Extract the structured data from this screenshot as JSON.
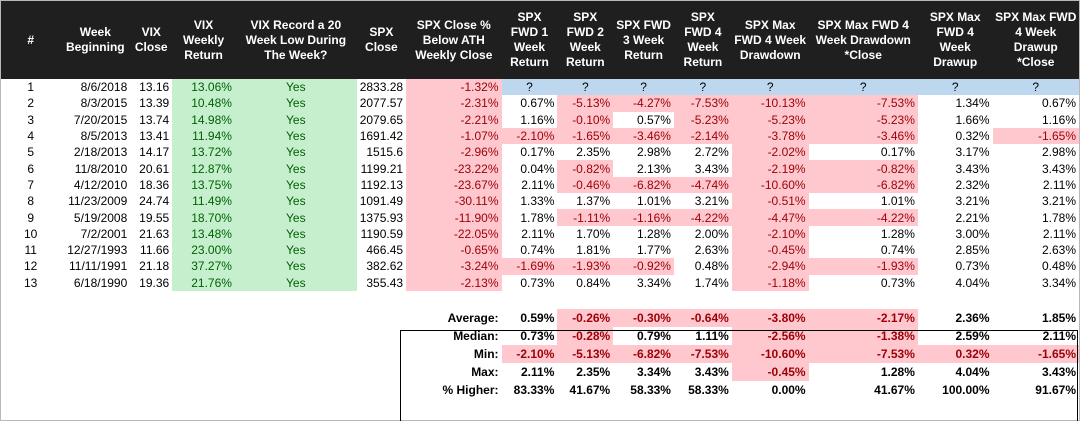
{
  "headers": [
    "#",
    "Week Beginning",
    "VIX Close",
    "VIX Weekly Return",
    "VIX Record a 20 Week Low During The Week?",
    "SPX Close",
    "SPX Close % Below ATH Weekly Close",
    "SPX FWD 1 Week Return",
    "SPX FWD 2 Week Return",
    "SPX FWD 3 Week Return",
    "SPX FWD 4 Week Return",
    "SPX Max FWD 4 Week Drawdown",
    "SPX Max FWD 4 Week Drawdown *Close",
    "SPX Max FWD 4 Week Drawup",
    "SPX Max FWD 4 Week Drawup *Close"
  ],
  "rows": [
    [
      "1",
      "8/6/2018",
      "13.16",
      "13.06%",
      "Yes",
      "2833.28",
      "-1.32%",
      "?",
      "?",
      "?",
      "?",
      "?",
      "?",
      "?",
      "?"
    ],
    [
      "2",
      "8/3/2015",
      "13.39",
      "10.48%",
      "Yes",
      "2077.57",
      "-2.31%",
      "0.67%",
      "-5.13%",
      "-4.27%",
      "-7.53%",
      "-10.13%",
      "-7.53%",
      "1.34%",
      "0.67%"
    ],
    [
      "3",
      "7/20/2015",
      "13.74",
      "14.98%",
      "Yes",
      "2079.65",
      "-2.21%",
      "1.16%",
      "-0.10%",
      "0.57%",
      "-5.23%",
      "-5.23%",
      "-5.23%",
      "1.66%",
      "1.16%"
    ],
    [
      "4",
      "8/5/2013",
      "13.41",
      "11.94%",
      "Yes",
      "1691.42",
      "-1.07%",
      "-2.10%",
      "-1.65%",
      "-3.46%",
      "-2.14%",
      "-3.78%",
      "-3.46%",
      "0.32%",
      "-1.65%"
    ],
    [
      "5",
      "2/18/2013",
      "14.17",
      "13.72%",
      "Yes",
      "1515.6",
      "-2.96%",
      "0.17%",
      "2.35%",
      "2.98%",
      "2.72%",
      "-2.02%",
      "0.17%",
      "3.17%",
      "2.98%"
    ],
    [
      "6",
      "11/8/2010",
      "20.61",
      "12.87%",
      "Yes",
      "1199.21",
      "-23.22%",
      "0.04%",
      "-0.82%",
      "2.13%",
      "3.43%",
      "-2.19%",
      "-0.82%",
      "3.43%",
      "3.43%"
    ],
    [
      "7",
      "4/12/2010",
      "18.36",
      "13.75%",
      "Yes",
      "1192.13",
      "-23.67%",
      "2.11%",
      "-0.46%",
      "-6.82%",
      "-4.74%",
      "-10.60%",
      "-6.82%",
      "2.32%",
      "2.11%"
    ],
    [
      "8",
      "11/23/2009",
      "24.74",
      "11.49%",
      "Yes",
      "1091.49",
      "-30.11%",
      "1.33%",
      "1.37%",
      "1.01%",
      "3.21%",
      "-0.51%",
      "1.01%",
      "3.21%",
      "3.21%"
    ],
    [
      "9",
      "5/19/2008",
      "19.55",
      "18.70%",
      "Yes",
      "1375.93",
      "-11.90%",
      "1.78%",
      "-1.11%",
      "-1.16%",
      "-4.22%",
      "-4.47%",
      "-4.22%",
      "2.21%",
      "1.78%"
    ],
    [
      "10",
      "7/2/2001",
      "21.63",
      "13.48%",
      "Yes",
      "1190.59",
      "-22.05%",
      "2.11%",
      "1.70%",
      "1.28%",
      "2.00%",
      "-2.10%",
      "1.28%",
      "3.00%",
      "2.11%"
    ],
    [
      "11",
      "12/27/1993",
      "11.66",
      "23.00%",
      "Yes",
      "466.45",
      "-0.65%",
      "0.74%",
      "1.81%",
      "1.77%",
      "2.63%",
      "-0.45%",
      "0.74%",
      "2.85%",
      "2.63%"
    ],
    [
      "12",
      "11/11/1991",
      "21.18",
      "37.27%",
      "Yes",
      "382.62",
      "-3.24%",
      "-1.69%",
      "-1.93%",
      "-0.92%",
      "0.48%",
      "-2.94%",
      "-1.93%",
      "0.73%",
      "0.48%"
    ],
    [
      "13",
      "6/18/1990",
      "19.36",
      "21.76%",
      "Yes",
      "355.43",
      "-2.13%",
      "0.73%",
      "0.84%",
      "3.34%",
      "1.74%",
      "-1.18%",
      "0.73%",
      "4.04%",
      "3.34%"
    ]
  ],
  "summary": [
    [
      "Average:",
      "0.59%",
      "-0.26%",
      "-0.30%",
      "-0.64%",
      "-3.80%",
      "-2.17%",
      "2.36%",
      "1.85%"
    ],
    [
      "Median:",
      "0.73%",
      "-0.28%",
      "0.79%",
      "1.11%",
      "-2.56%",
      "-1.38%",
      "2.59%",
      "2.11%"
    ],
    [
      "Min:",
      "-2.10%",
      "-5.13%",
      "-6.82%",
      "-7.53%",
      "-10.60%",
      "-7.53%",
      "0.32%",
      "-1.65%"
    ],
    [
      "Max:",
      "2.11%",
      "2.35%",
      "3.34%",
      "3.43%",
      "-0.45%",
      "1.28%",
      "4.04%",
      "3.43%"
    ],
    [
      "% Higher:",
      "83.33%",
      "41.67%",
      "58.33%",
      "58.33%",
      "0.00%",
      "41.67%",
      "100.00%",
      "91.67%"
    ]
  ],
  "colors": {
    "header_bg": "#1f1f1f",
    "positive_fill": "#c6efce",
    "negative_fill": "#ffc7ce",
    "unknown_fill": "#bdd7ee"
  }
}
